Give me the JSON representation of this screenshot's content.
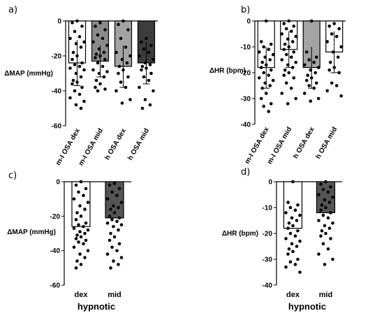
{
  "chart_data": [
    {
      "panel": "a)",
      "type": "bar",
      "ylabel": "ΔMAP (mmHg)",
      "xlabel": "",
      "ylim": [
        -60,
        0
      ],
      "yticks": [
        0,
        -20,
        -40,
        -60
      ],
      "categories": [
        "m-I OSA dex",
        "m-I OSA mid",
        "h OSA dex",
        "h OSA mid"
      ],
      "values": [
        -24,
        -23,
        -26,
        -24
      ],
      "errors": [
        13,
        9,
        12,
        12
      ],
      "fills": [
        "#ffffff",
        "#8a8a8a",
        "#a3a3a3",
        "#3c3c3c"
      ],
      "points": [
        [
          0,
          -1,
          -3,
          -6,
          -9,
          -10,
          -12,
          -13,
          -15,
          -18,
          -20,
          -22,
          -24,
          -25,
          -26,
          -27,
          -28,
          -30,
          -32,
          -34,
          -35,
          -36,
          -38,
          -40,
          -42,
          -44,
          -46,
          -48,
          -50
        ],
        [
          -1,
          -3,
          -5,
          -8,
          -10,
          -12,
          -14,
          -16,
          -18,
          -19,
          -20,
          -21,
          -22,
          -24,
          -26,
          -28,
          -29,
          -30,
          -32,
          -34,
          -36,
          -38,
          -39,
          -40
        ],
        [
          0,
          -2,
          -5,
          -10,
          -15,
          -18,
          -20,
          -22,
          -24,
          -26,
          -28,
          -30,
          -32,
          -35,
          -38,
          -40,
          -45,
          -47
        ],
        [
          -10,
          -12,
          -14,
          -16,
          -18,
          -20,
          -22,
          -24,
          -25,
          -26,
          -27,
          -28,
          -30,
          -32,
          -34,
          -38,
          -40,
          -45,
          -48,
          -50
        ]
      ]
    },
    {
      "panel": "b)",
      "type": "bar",
      "ylabel": "ΔHR (bpm)",
      "xlabel": "",
      "ylim": [
        -40,
        0
      ],
      "yticks": [
        0,
        -10,
        -20,
        -30,
        -40
      ],
      "categories": [
        "m-I OSA dex",
        "m-I OSA mid",
        "h OSA dex",
        "h OSA mid"
      ],
      "values": [
        -18,
        -11,
        -18,
        -12
      ],
      "errors": [
        8,
        7,
        8,
        8
      ],
      "fills": [
        "#ffffff",
        "#ffffff",
        "#a3a3a3",
        "#ffffff"
      ],
      "points": [
        [
          0,
          -8,
          -9,
          -10,
          -11,
          -12,
          -13,
          -14,
          -15,
          -16,
          -17,
          -18,
          -19,
          -20,
          -21,
          -22,
          -23,
          -24,
          -25,
          -26,
          -28,
          -30,
          -32,
          -33,
          -35
        ],
        [
          0,
          -1,
          -2,
          -3,
          -4,
          -5,
          -6,
          -7,
          -8,
          -9,
          -10,
          -11,
          -12,
          -13,
          -14,
          -15,
          -16,
          -17,
          -18,
          -19,
          -20,
          -21,
          -22,
          -24,
          -26,
          -28,
          -30,
          -32
        ],
        [
          0,
          -12,
          -14,
          -15,
          -16,
          -17,
          -18,
          -19,
          -20,
          -21,
          -22,
          -23,
          -24,
          -25,
          -26,
          -28,
          -30,
          -31
        ],
        [
          -1,
          -2,
          -3,
          -5,
          -6,
          -8,
          -10,
          -12,
          -14,
          -16,
          -18,
          -19,
          -20,
          -24,
          -25,
          -27,
          -29
        ]
      ]
    },
    {
      "panel": "c)",
      "type": "bar",
      "ylabel": "ΔMAP (mmHg)",
      "xlabel": "hypnotic",
      "ylim": [
        -60,
        0
      ],
      "yticks": [
        0,
        -20,
        -40,
        -60
      ],
      "categories": [
        "dex",
        "mid"
      ],
      "values": [
        -26,
        -21
      ],
      "errors": [
        0,
        0
      ],
      "fills": [
        "#ffffff",
        "#555555"
      ],
      "points": [
        [
          0,
          -2,
          -4,
          -6,
          -8,
          -10,
          -12,
          -14,
          -16,
          -18,
          -20,
          -22,
          -24,
          -25,
          -26,
          -27,
          -28,
          -29,
          -30,
          -31,
          -32,
          -33,
          -34,
          -35,
          -36,
          -38,
          -40,
          -42,
          -44,
          -46,
          -48,
          -50
        ],
        [
          -1,
          -2,
          -4,
          -6,
          -8,
          -10,
          -12,
          -14,
          -15,
          -16,
          -18,
          -20,
          -21,
          -22,
          -23,
          -24,
          -25,
          -26,
          -28,
          -30,
          -32,
          -34,
          -36,
          -38,
          -40,
          -42,
          -44,
          -46,
          -48,
          -50
        ]
      ]
    },
    {
      "panel": "d)",
      "type": "bar",
      "ylabel": "ΔHR (bpm)",
      "xlabel": "hypnotic",
      "ylim": [
        -40,
        0
      ],
      "yticks": [
        0,
        -10,
        -20,
        -30,
        -40
      ],
      "categories": [
        "dex",
        "mid"
      ],
      "values": [
        -18,
        -12
      ],
      "errors": [
        0,
        0
      ],
      "fills": [
        "#ffffff",
        "#555555"
      ],
      "points": [
        [
          0,
          -8,
          -9,
          -10,
          -11,
          -12,
          -13,
          -14,
          -15,
          -16,
          -17,
          -18,
          -19,
          -20,
          -21,
          -22,
          -23,
          -24,
          -25,
          -26,
          -27,
          -28,
          -30,
          -31,
          -32,
          -33,
          -35
        ],
        [
          0,
          -1,
          -2,
          -3,
          -4,
          -5,
          -6,
          -7,
          -8,
          -9,
          -10,
          -11,
          -12,
          -13,
          -14,
          -15,
          -16,
          -17,
          -18,
          -19,
          -20,
          -21,
          -22,
          -24,
          -26,
          -28,
          -30,
          -32
        ]
      ]
    }
  ]
}
